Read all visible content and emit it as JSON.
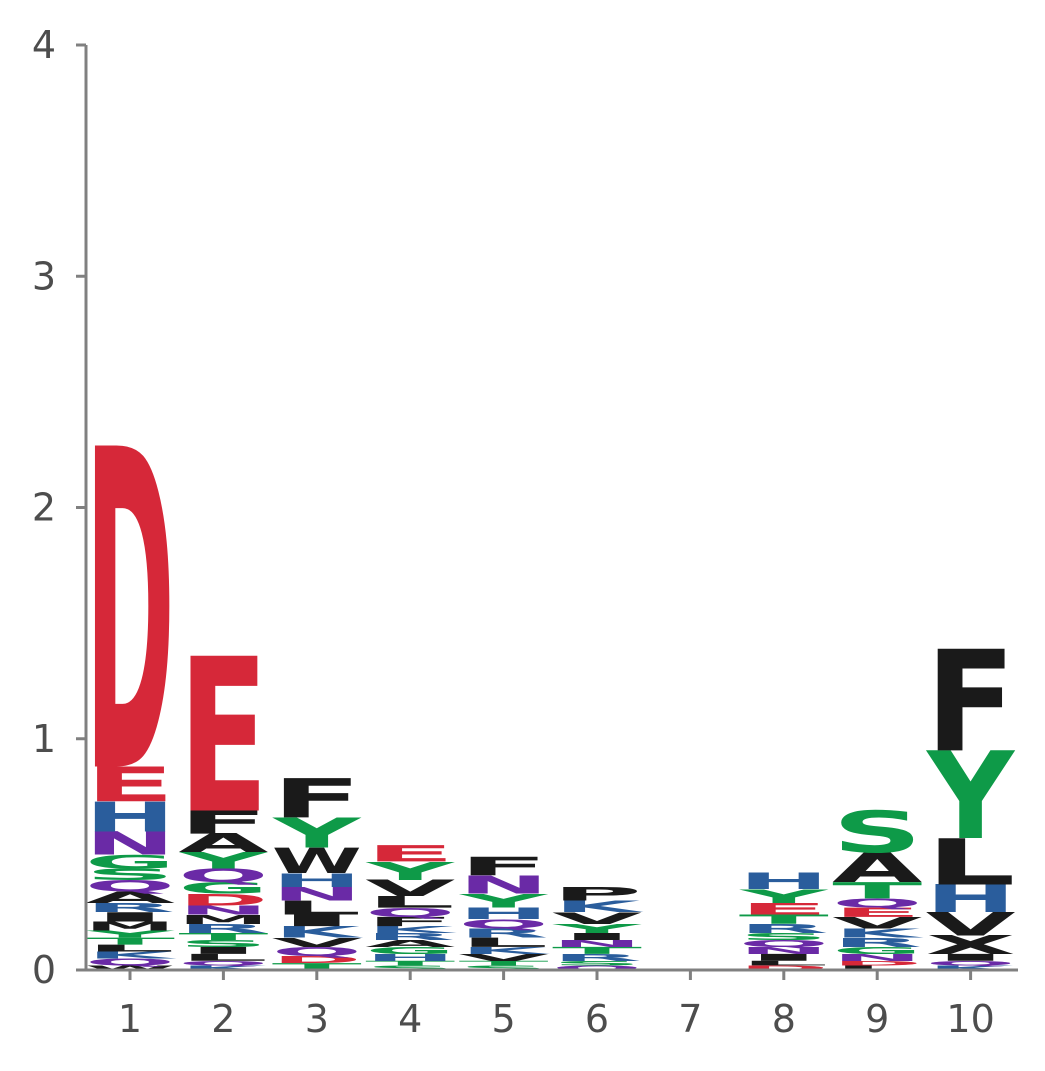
{
  "chart_data": {
    "type": "sequence-logo",
    "title": "",
    "xlabel": "",
    "ylabel": "",
    "ylim": [
      0,
      4
    ],
    "y_ticks": [
      0,
      1,
      2,
      3,
      4
    ],
    "x_ticks": [
      1,
      2,
      3,
      4,
      5,
      6,
      7,
      8,
      9,
      10
    ],
    "grid": false,
    "colors": {
      "acidic": "#d62839",
      "basic": "#2a5d9c",
      "polar": "#0e9a48",
      "amide": "#6a2aa6",
      "hydrophobic": "#1a1a1a"
    },
    "positions": [
      {
        "pos": 1,
        "letters": [
          {
            "aa": "W",
            "h": 0.02
          },
          {
            "aa": "Q",
            "h": 0.03
          },
          {
            "aa": "K",
            "h": 0.03
          },
          {
            "aa": "L",
            "h": 0.03
          },
          {
            "aa": "T",
            "h": 0.03
          },
          {
            "aa": "Y",
            "h": 0.03
          },
          {
            "aa": "M",
            "h": 0.04
          },
          {
            "aa": "I",
            "h": 0.04
          },
          {
            "aa": "R",
            "h": 0.04
          },
          {
            "aa": "A",
            "h": 0.05
          },
          {
            "aa": "Q",
            "h": 0.05
          },
          {
            "aa": "S",
            "h": 0.05
          },
          {
            "aa": "G",
            "h": 0.06
          },
          {
            "aa": "N",
            "h": 0.1
          },
          {
            "aa": "H",
            "h": 0.13
          },
          {
            "aa": "E",
            "h": 0.15
          },
          {
            "aa": "D",
            "h": 1.39
          }
        ]
      },
      {
        "pos": 2,
        "letters": [
          {
            "aa": "K",
            "h": 0.02
          },
          {
            "aa": "Q",
            "h": 0.02
          },
          {
            "aa": "L",
            "h": 0.03
          },
          {
            "aa": "I",
            "h": 0.03
          },
          {
            "aa": "S",
            "h": 0.03
          },
          {
            "aa": "T",
            "h": 0.03
          },
          {
            "aa": "R",
            "h": 0.04
          },
          {
            "aa": "M",
            "h": 0.04
          },
          {
            "aa": "N",
            "h": 0.04
          },
          {
            "aa": "D",
            "h": 0.05
          },
          {
            "aa": "G",
            "h": 0.05
          },
          {
            "aa": "Q",
            "h": 0.06
          },
          {
            "aa": "Y",
            "h": 0.07
          },
          {
            "aa": "A",
            "h": 0.08
          },
          {
            "aa": "F",
            "h": 0.1
          },
          {
            "aa": "E",
            "h": 0.67
          }
        ]
      },
      {
        "pos": 3,
        "letters": [
          {
            "aa": "T",
            "h": 0.03
          },
          {
            "aa": "D",
            "h": 0.03
          },
          {
            "aa": "Q",
            "h": 0.04
          },
          {
            "aa": "V",
            "h": 0.04
          },
          {
            "aa": "K",
            "h": 0.05
          },
          {
            "aa": "I",
            "h": 0.05
          },
          {
            "aa": "L",
            "h": 0.06
          },
          {
            "aa": "N",
            "h": 0.06
          },
          {
            "aa": "H",
            "h": 0.06
          },
          {
            "aa": "W",
            "h": 0.11
          },
          {
            "aa": "Y",
            "h": 0.13
          },
          {
            "aa": "F",
            "h": 0.17
          }
        ]
      },
      {
        "pos": 4,
        "letters": [
          {
            "aa": "S",
            "h": 0.02
          },
          {
            "aa": "T",
            "h": 0.02
          },
          {
            "aa": "H",
            "h": 0.03
          },
          {
            "aa": "G",
            "h": 0.03
          },
          {
            "aa": "A",
            "h": 0.03
          },
          {
            "aa": "R",
            "h": 0.03
          },
          {
            "aa": "K",
            "h": 0.03
          },
          {
            "aa": "F",
            "h": 0.04
          },
          {
            "aa": "Q",
            "h": 0.04
          },
          {
            "aa": "L",
            "h": 0.05
          },
          {
            "aa": "V",
            "h": 0.07
          },
          {
            "aa": "Y",
            "h": 0.08
          },
          {
            "aa": "E",
            "h": 0.07
          }
        ]
      },
      {
        "pos": 5,
        "letters": [
          {
            "aa": "S",
            "h": 0.02
          },
          {
            "aa": "T",
            "h": 0.02
          },
          {
            "aa": "V",
            "h": 0.03
          },
          {
            "aa": "K",
            "h": 0.03
          },
          {
            "aa": "L",
            "h": 0.04
          },
          {
            "aa": "R",
            "h": 0.04
          },
          {
            "aa": "Q",
            "h": 0.04
          },
          {
            "aa": "H",
            "h": 0.05
          },
          {
            "aa": "Y",
            "h": 0.06
          },
          {
            "aa": "N",
            "h": 0.08
          },
          {
            "aa": "F",
            "h": 0.08
          }
        ]
      },
      {
        "pos": 6,
        "letters": [
          {
            "aa": "Q",
            "h": 0.02
          },
          {
            "aa": "S",
            "h": 0.02
          },
          {
            "aa": "R",
            "h": 0.03
          },
          {
            "aa": "T",
            "h": 0.03
          },
          {
            "aa": "N",
            "h": 0.03
          },
          {
            "aa": "I",
            "h": 0.03
          },
          {
            "aa": "Y",
            "h": 0.04
          },
          {
            "aa": "V",
            "h": 0.05
          },
          {
            "aa": "K",
            "h": 0.05
          },
          {
            "aa": "P",
            "h": 0.06
          }
        ]
      },
      {
        "pos": 7,
        "letters": []
      },
      {
        "pos": 8,
        "letters": [
          {
            "aa": "D",
            "h": 0.02
          },
          {
            "aa": "L",
            "h": 0.02
          },
          {
            "aa": "I",
            "h": 0.03
          },
          {
            "aa": "N",
            "h": 0.03
          },
          {
            "aa": "Q",
            "h": 0.03
          },
          {
            "aa": "S",
            "h": 0.03
          },
          {
            "aa": "R",
            "h": 0.04
          },
          {
            "aa": "T",
            "h": 0.04
          },
          {
            "aa": "E",
            "h": 0.05
          },
          {
            "aa": "Y",
            "h": 0.06
          },
          {
            "aa": "H",
            "h": 0.07
          }
        ]
      },
      {
        "pos": 9,
        "letters": [
          {
            "aa": "L",
            "h": 0.02
          },
          {
            "aa": "D",
            "h": 0.02
          },
          {
            "aa": "N",
            "h": 0.03
          },
          {
            "aa": "G",
            "h": 0.03
          },
          {
            "aa": "R",
            "h": 0.04
          },
          {
            "aa": "K",
            "h": 0.04
          },
          {
            "aa": "V",
            "h": 0.05
          },
          {
            "aa": "E",
            "h": 0.04
          },
          {
            "aa": "Q",
            "h": 0.04
          },
          {
            "aa": "T",
            "h": 0.07
          },
          {
            "aa": "A",
            "h": 0.13
          },
          {
            "aa": "S",
            "h": 0.18
          }
        ]
      },
      {
        "pos": 10,
        "letters": [
          {
            "aa": "K",
            "h": 0.02
          },
          {
            "aa": "Q",
            "h": 0.02
          },
          {
            "aa": "I",
            "h": 0.03
          },
          {
            "aa": "X",
            "h": 0.08
          },
          {
            "aa": "V",
            "h": 0.1
          },
          {
            "aa": "H",
            "h": 0.12
          },
          {
            "aa": "L",
            "h": 0.2
          },
          {
            "aa": "Y",
            "h": 0.38
          },
          {
            "aa": "F",
            "h": 0.44
          }
        ]
      }
    ]
  }
}
